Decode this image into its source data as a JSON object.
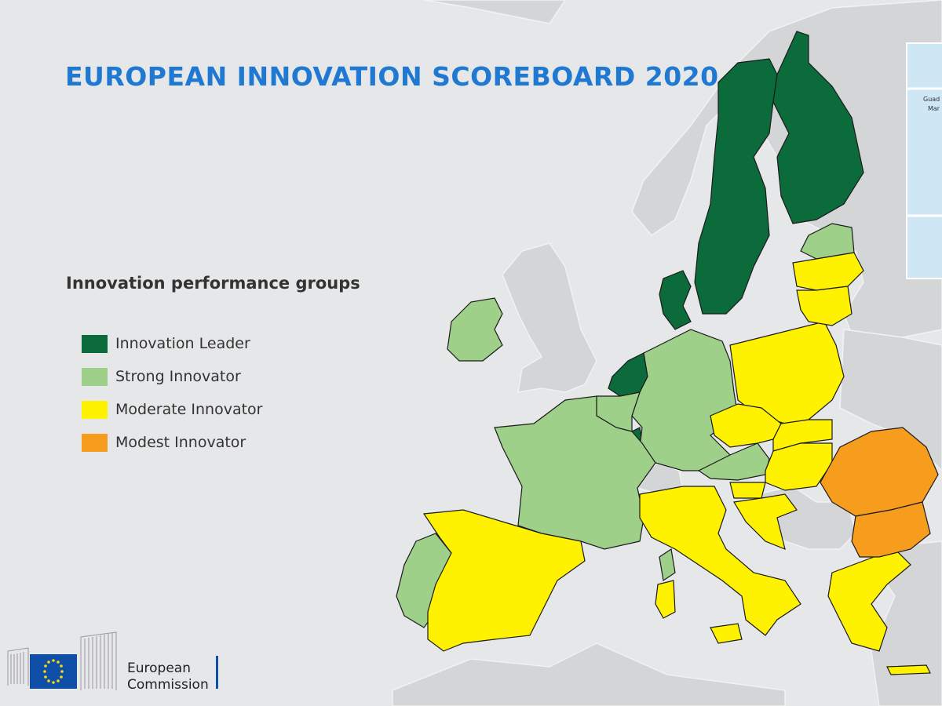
{
  "title": "EUROPEAN INNOVATION SCOREBOARD 2020",
  "legend": {
    "heading": "Innovation performance groups",
    "items": [
      {
        "label": "Innovation Leader",
        "color": "#0b6b3a"
      },
      {
        "label": "Strong Innovator",
        "color": "#9fd08a"
      },
      {
        "label": "Moderate Innovator",
        "color": "#fff200"
      },
      {
        "label": "Modest Innovator",
        "color": "#f79d1e"
      }
    ]
  },
  "logo": {
    "line1": "European",
    "line2": "Commission"
  },
  "inset": {
    "label1": "Guad",
    "label2": "Mar"
  },
  "colors": {
    "sea": "#e6e7e9",
    "non_eu": "#d4d5d7",
    "border": "#1a1a1a",
    "title": "#1f78d1"
  }
}
